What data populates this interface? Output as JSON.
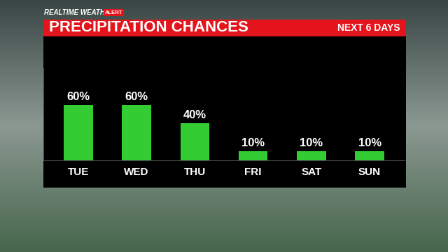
{
  "chart_data": {
    "type": "bar",
    "title": "PRECIPITATION CHANCES",
    "subtitle": "NEXT 6 DAYS",
    "annotations": [
      "REALTIME WEATHER",
      "ALERT"
    ],
    "categories": [
      "TUE",
      "WED",
      "THU",
      "FRI",
      "SAT",
      "SUN"
    ],
    "values": [
      60,
      60,
      40,
      10,
      10,
      10
    ],
    "value_labels": [
      "60%",
      "60%",
      "40%",
      "10%",
      "10%",
      "10%"
    ],
    "data_labels": true,
    "color": "#33cc33",
    "ylim": [
      0,
      100
    ],
    "tick_labels": "x",
    "grid": false
  }
}
